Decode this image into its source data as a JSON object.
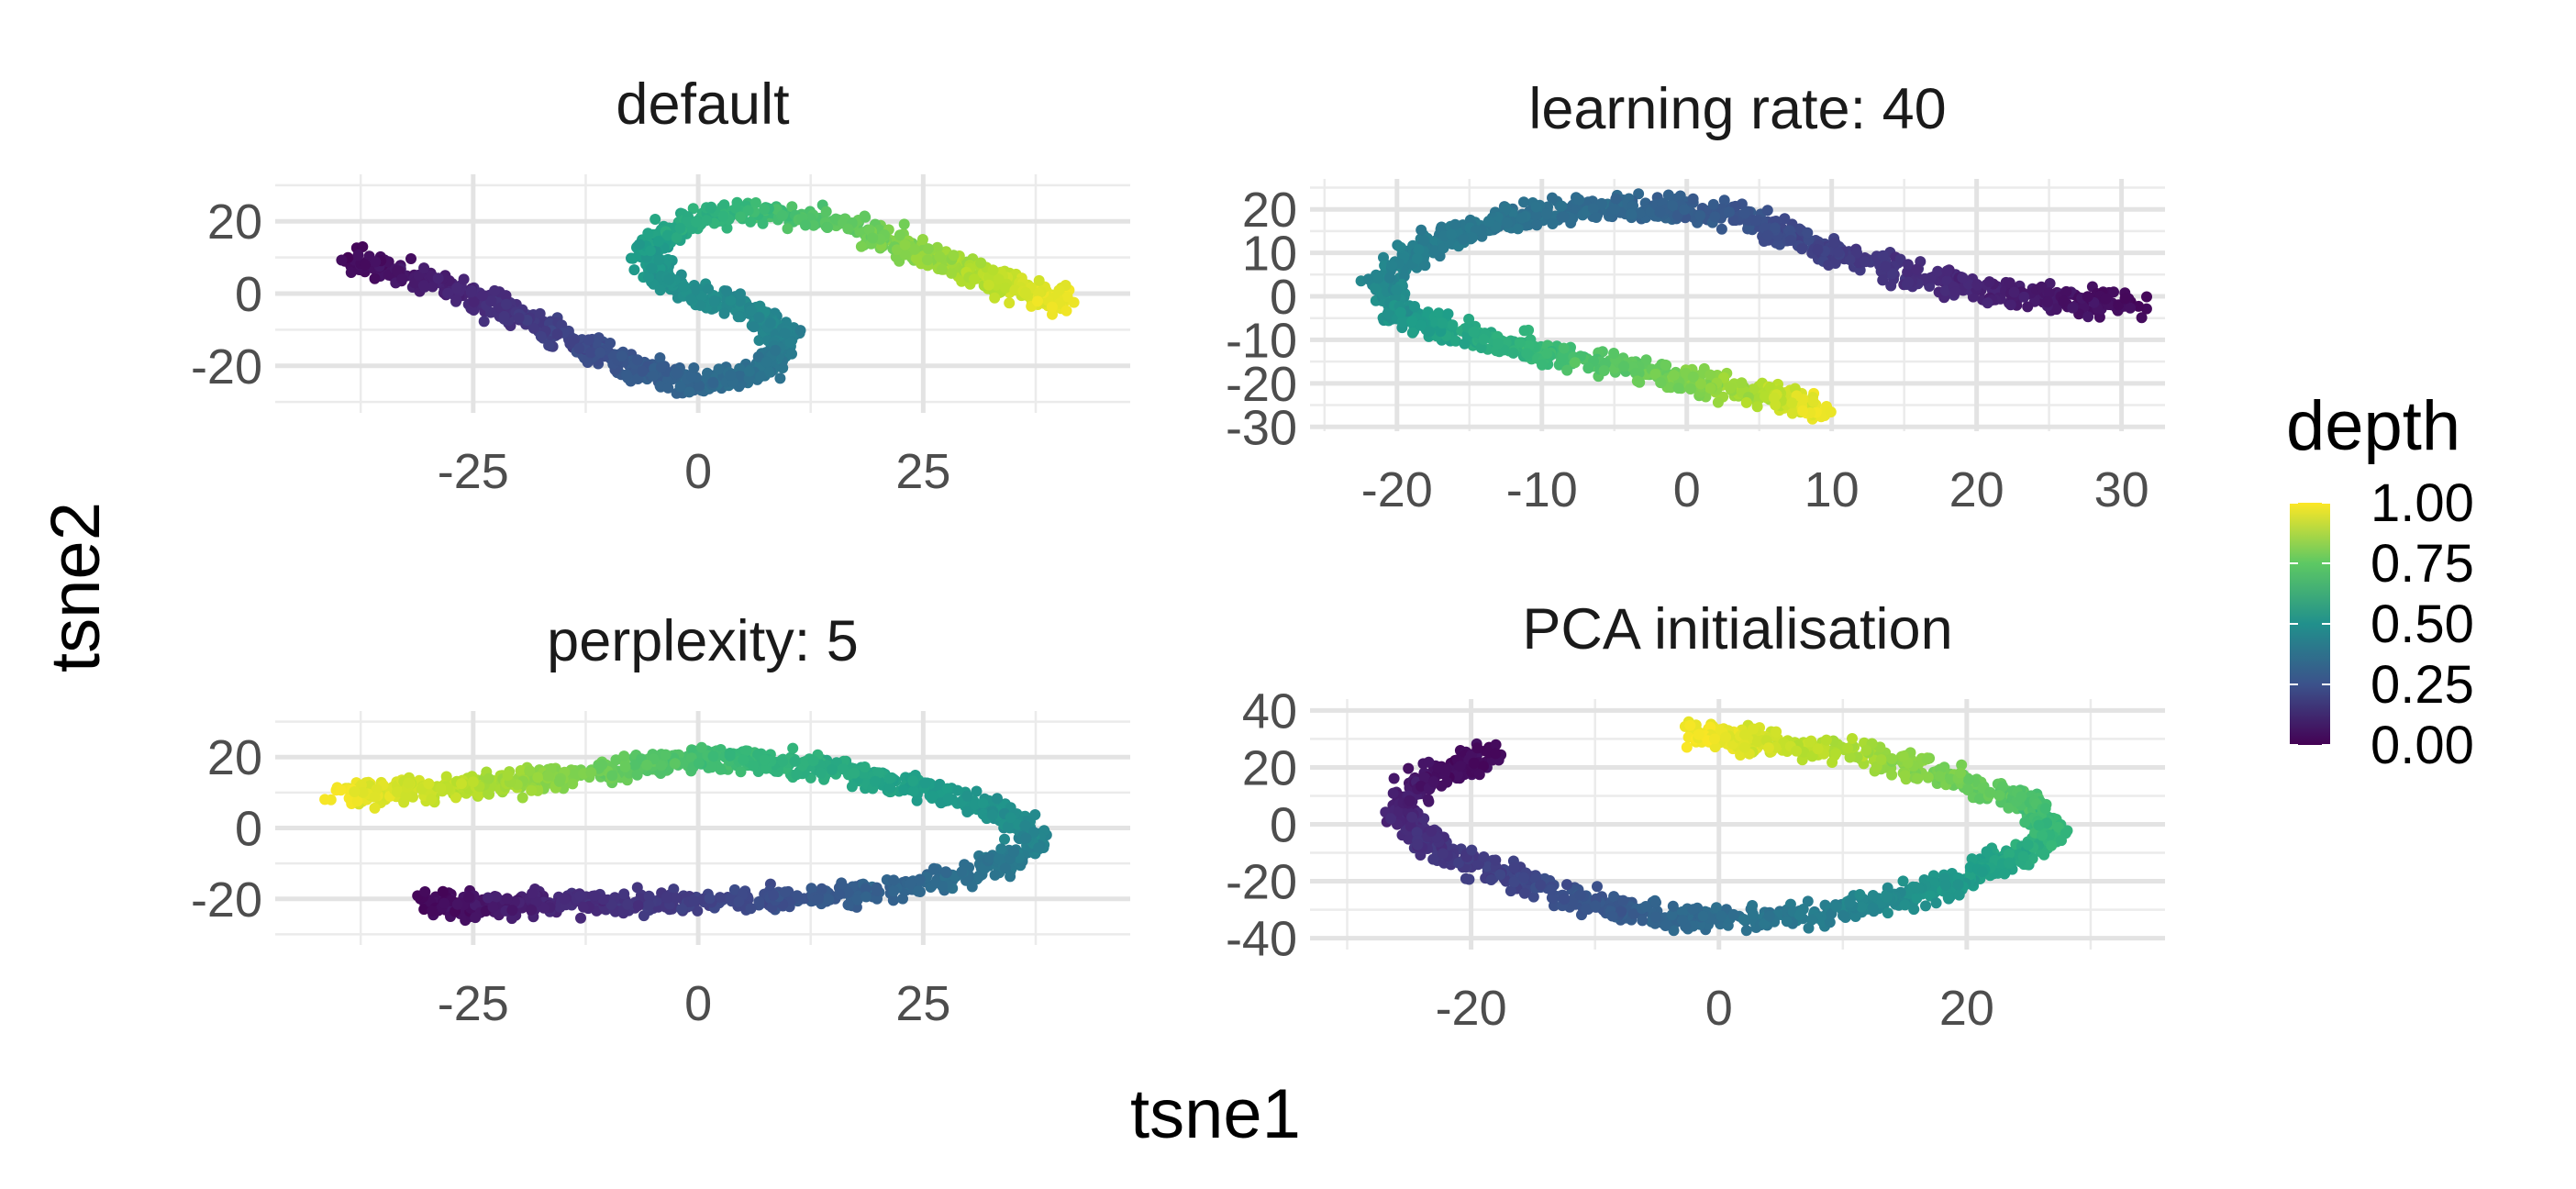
{
  "chart_data": {
    "type": "scatter",
    "xlabel": "tsne1",
    "ylabel": "tsne2",
    "legend": {
      "title": "depth",
      "ticks": [
        "0.00",
        "0.25",
        "0.50",
        "0.75",
        "1.00"
      ],
      "range": [
        0,
        1
      ],
      "colormap": "viridis",
      "placement": "right"
    },
    "panels": [
      {
        "title": "default",
        "xlim": [
          -47,
          48
        ],
        "ylim": [
          -33,
          33
        ],
        "xticks": [
          -25,
          0,
          25
        ],
        "yticks": [
          -20,
          0,
          20
        ],
        "curve": [
          [
            -38,
            10,
            0.02
          ],
          [
            -30,
            4,
            0.08
          ],
          [
            -22,
            -4,
            0.14
          ],
          [
            -15,
            -12,
            0.2
          ],
          [
            -8,
            -20,
            0.27
          ],
          [
            0,
            -25,
            0.33
          ],
          [
            7,
            -22,
            0.38
          ],
          [
            10,
            -13,
            0.43
          ],
          [
            6,
            -5,
            0.47
          ],
          [
            -3,
            2,
            0.5
          ],
          [
            -6,
            12,
            0.55
          ],
          [
            0,
            22,
            0.63
          ],
          [
            10,
            23,
            0.7
          ],
          [
            20,
            16,
            0.78
          ],
          [
            28,
            8,
            0.86
          ],
          [
            36,
            1,
            0.93
          ],
          [
            41,
            -3,
            0.98
          ]
        ]
      },
      {
        "title": "learning rate: 40",
        "xlim": [
          -26,
          33
        ],
        "ylim": [
          -31,
          27
        ],
        "xticks": [
          -20,
          -10,
          0,
          10,
          20,
          30
        ],
        "yticks": [
          -30,
          -20,
          -10,
          0,
          10,
          20
        ],
        "curve": [
          [
            31,
            -2,
            0.02
          ],
          [
            24,
            0,
            0.07
          ],
          [
            16,
            4,
            0.13
          ],
          [
            9,
            12,
            0.2
          ],
          [
            3,
            19,
            0.27
          ],
          [
            -4,
            21,
            0.33
          ],
          [
            -12,
            18,
            0.38
          ],
          [
            -18,
            12,
            0.42
          ],
          [
            -21,
            4,
            0.46
          ],
          [
            -20,
            -4,
            0.52
          ],
          [
            -15,
            -9,
            0.6
          ],
          [
            -8,
            -14,
            0.7
          ],
          [
            0,
            -19,
            0.8
          ],
          [
            6,
            -23,
            0.9
          ],
          [
            9,
            -26,
            0.98
          ]
        ]
      },
      {
        "title": "perplexity: 5",
        "xlim": [
          -47,
          48
        ],
        "ylim": [
          -33,
          33
        ],
        "xticks": [
          -25,
          0,
          25
        ],
        "yticks": [
          -20,
          0,
          20
        ],
        "curve": [
          [
            -40,
            9,
            0.98
          ],
          [
            -30,
            11,
            0.92
          ],
          [
            -20,
            13,
            0.85
          ],
          [
            -10,
            16,
            0.77
          ],
          [
            0,
            20,
            0.7
          ],
          [
            12,
            18,
            0.63
          ],
          [
            24,
            12,
            0.56
          ],
          [
            34,
            4,
            0.5
          ],
          [
            38,
            -4,
            0.45
          ],
          [
            32,
            -12,
            0.38
          ],
          [
            22,
            -17,
            0.32
          ],
          [
            10,
            -20,
            0.25
          ],
          [
            -2,
            -21,
            0.18
          ],
          [
            -14,
            -21,
            0.12
          ],
          [
            -24,
            -22,
            0.06
          ],
          [
            -30,
            -21,
            0.02
          ]
        ]
      },
      {
        "title": "PCA initialisation",
        "xlim": [
          -33,
          36
        ],
        "ylim": [
          -44,
          44
        ],
        "xticks": [
          -20,
          0,
          20
        ],
        "yticks": [
          -40,
          -20,
          0,
          20,
          40
        ],
        "curve": [
          [
            -18,
            25,
            0.02
          ],
          [
            -24,
            16,
            0.05
          ],
          [
            -26,
            4,
            0.1
          ],
          [
            -23,
            -8,
            0.15
          ],
          [
            -17,
            -18,
            0.2
          ],
          [
            -10,
            -28,
            0.27
          ],
          [
            -2,
            -34,
            0.34
          ],
          [
            8,
            -32,
            0.42
          ],
          [
            16,
            -25,
            0.5
          ],
          [
            22,
            -15,
            0.57
          ],
          [
            27,
            -4,
            0.65
          ],
          [
            25,
            8,
            0.72
          ],
          [
            18,
            18,
            0.8
          ],
          [
            10,
            26,
            0.88
          ],
          [
            2,
            30,
            0.95
          ],
          [
            -2,
            32,
            0.99
          ]
        ]
      }
    ]
  }
}
